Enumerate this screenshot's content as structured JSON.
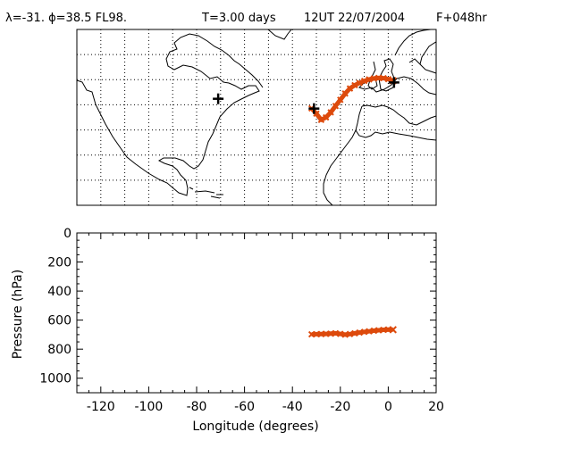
{
  "header": {
    "position": "λ=-31. ϕ=38.5 FL98.",
    "duration": "T=3.00 days",
    "time": "12UT 22/07/2004",
    "forecast": "F+048hr"
  },
  "colors": {
    "trajectory": "#dd4a0c",
    "marker": "#000000",
    "coastline": "#000000",
    "grid": "#000000",
    "background": "#ffffff"
  },
  "chart_data": [
    {
      "type": "map",
      "lon_range": [
        -130,
        20
      ],
      "lat_range": [
        0,
        70
      ],
      "grid": "dotted",
      "release_markers": [
        {
          "lon": -71.0,
          "lat": 42.4
        },
        {
          "lon": -31.0,
          "lat": 38.5
        },
        {
          "lon": 2.4,
          "lat": 48.9
        }
      ],
      "trajectory": {
        "lon": [
          -32,
          -30,
          -28,
          -26,
          -24,
          -22,
          -20,
          -18,
          -16,
          -14,
          -12,
          -10,
          -8,
          -6,
          -4,
          -2,
          0,
          2
        ],
        "lat": [
          38.6,
          36.5,
          34.0,
          35.0,
          37.0,
          39.5,
          42.0,
          44.5,
          46.5,
          47.8,
          48.7,
          49.5,
          50.1,
          50.5,
          50.7,
          50.6,
          50.2,
          49.6
        ],
        "end_marker": "x"
      }
    },
    {
      "type": "scatter",
      "xlabel": "Longitude  (degrees)",
      "ylabel": "Pressure  (hPa)",
      "xlim": [
        -130,
        20
      ],
      "ylim": [
        1100,
        0
      ],
      "xticks": [
        "-120",
        "-100",
        "-80",
        "-60",
        "-40",
        "-20",
        "0",
        "20"
      ],
      "yticks": [
        "0",
        "200",
        "400",
        "600",
        "800",
        "1000"
      ],
      "series": [
        {
          "marker": "x",
          "x": [
            -32,
            -30,
            -28,
            -26,
            -24,
            -22,
            -20,
            -18,
            -16,
            -14,
            -12,
            -10,
            -8,
            -6,
            -4,
            -2,
            0,
            2
          ],
          "y": [
            698,
            697,
            696,
            695,
            693,
            691,
            695,
            700,
            696,
            691,
            686,
            681,
            677,
            673,
            670,
            667,
            665,
            666
          ]
        }
      ]
    }
  ]
}
